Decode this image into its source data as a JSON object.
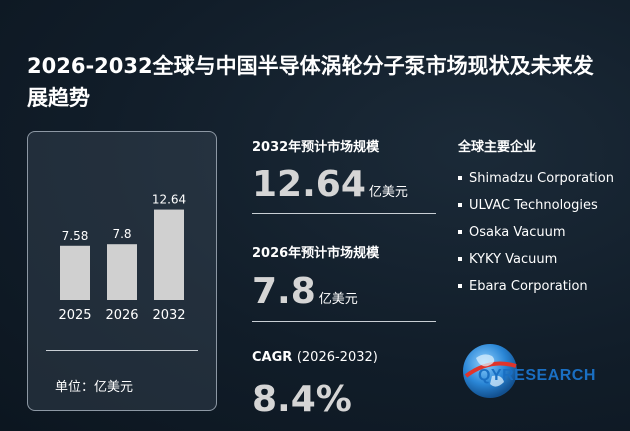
{
  "title": "2026-2032全球与中国半导体涡轮分子泵市场现状及未来发展趋势",
  "chart_data": {
    "type": "bar",
    "categories": [
      "2025",
      "2026",
      "2032"
    ],
    "values": [
      7.58,
      7.8,
      12.64
    ],
    "data_labels": [
      "7.58",
      "7.8",
      "12.64"
    ],
    "ylim": [
      0,
      13
    ],
    "grid": false,
    "bar_color": "#d0d0d0",
    "unit_label": "单位：亿美元"
  },
  "metrics": {
    "market_2032": {
      "label": "2032年预计市场规模",
      "value": "12.64",
      "unit": "亿美元"
    },
    "market_2026": {
      "label": "2026年预计市场规模",
      "value": "7.8",
      "unit": "亿美元"
    },
    "cagr": {
      "label": "CAGR",
      "period": "(2026-2032)",
      "value": "8.4%"
    }
  },
  "companies": {
    "title": "全球主要企业",
    "items": [
      "Shimadzu Corporation",
      "ULVAC Technologies",
      "Osaka Vacuum",
      "KYKY Vacuum",
      "Ebara Corporation"
    ]
  },
  "logo": {
    "text": "QYRESEARCH",
    "colors": {
      "primary": "#1a6fc2",
      "accent": "#e0342a"
    }
  }
}
